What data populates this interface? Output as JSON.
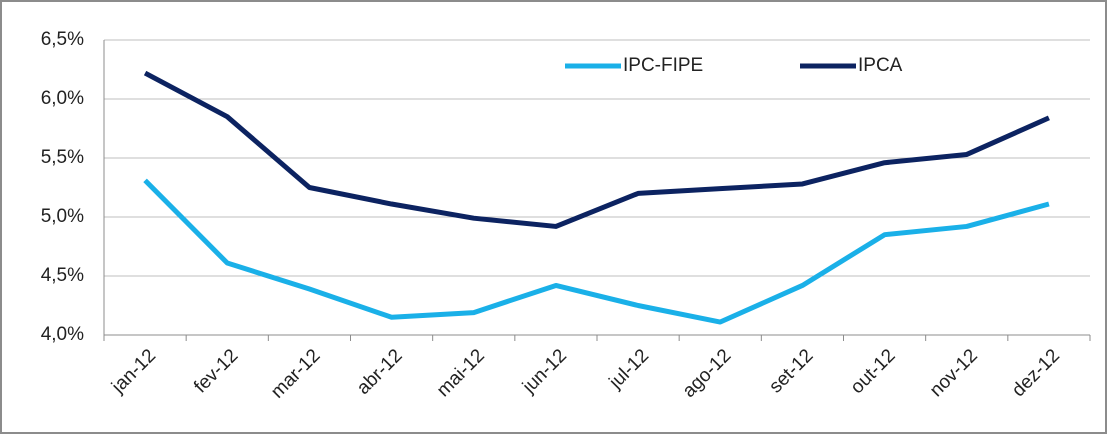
{
  "chart_data": {
    "type": "line",
    "categories": [
      "jan-12",
      "fev-12",
      "mar-12",
      "abr-12",
      "mai-12",
      "jun-12",
      "jul-12",
      "ago-12",
      "set-12",
      "out-12",
      "nov-12",
      "dez-12"
    ],
    "series": [
      {
        "name": "IPC-FIPE",
        "color": "#1ab0e8",
        "values": [
          5.31,
          4.61,
          4.39,
          4.15,
          4.19,
          4.42,
          4.25,
          4.11,
          4.42,
          4.85,
          4.92,
          5.11
        ]
      },
      {
        "name": "IPCA",
        "color": "#0c2361",
        "values": [
          6.22,
          5.85,
          5.25,
          5.11,
          4.99,
          4.92,
          5.2,
          5.24,
          5.28,
          5.46,
          5.53,
          5.84
        ]
      }
    ],
    "ylim": [
      4.0,
      6.5
    ],
    "yticks": [
      {
        "value": 4.0,
        "label": "4,0%"
      },
      {
        "value": 4.5,
        "label": "4,5%"
      },
      {
        "value": 5.0,
        "label": "5,0%"
      },
      {
        "value": 5.5,
        "label": "5,5%"
      },
      {
        "value": 6.0,
        "label": "6,0%"
      },
      {
        "value": 6.5,
        "label": "6,5%"
      }
    ],
    "grid": true,
    "legend": "top"
  }
}
